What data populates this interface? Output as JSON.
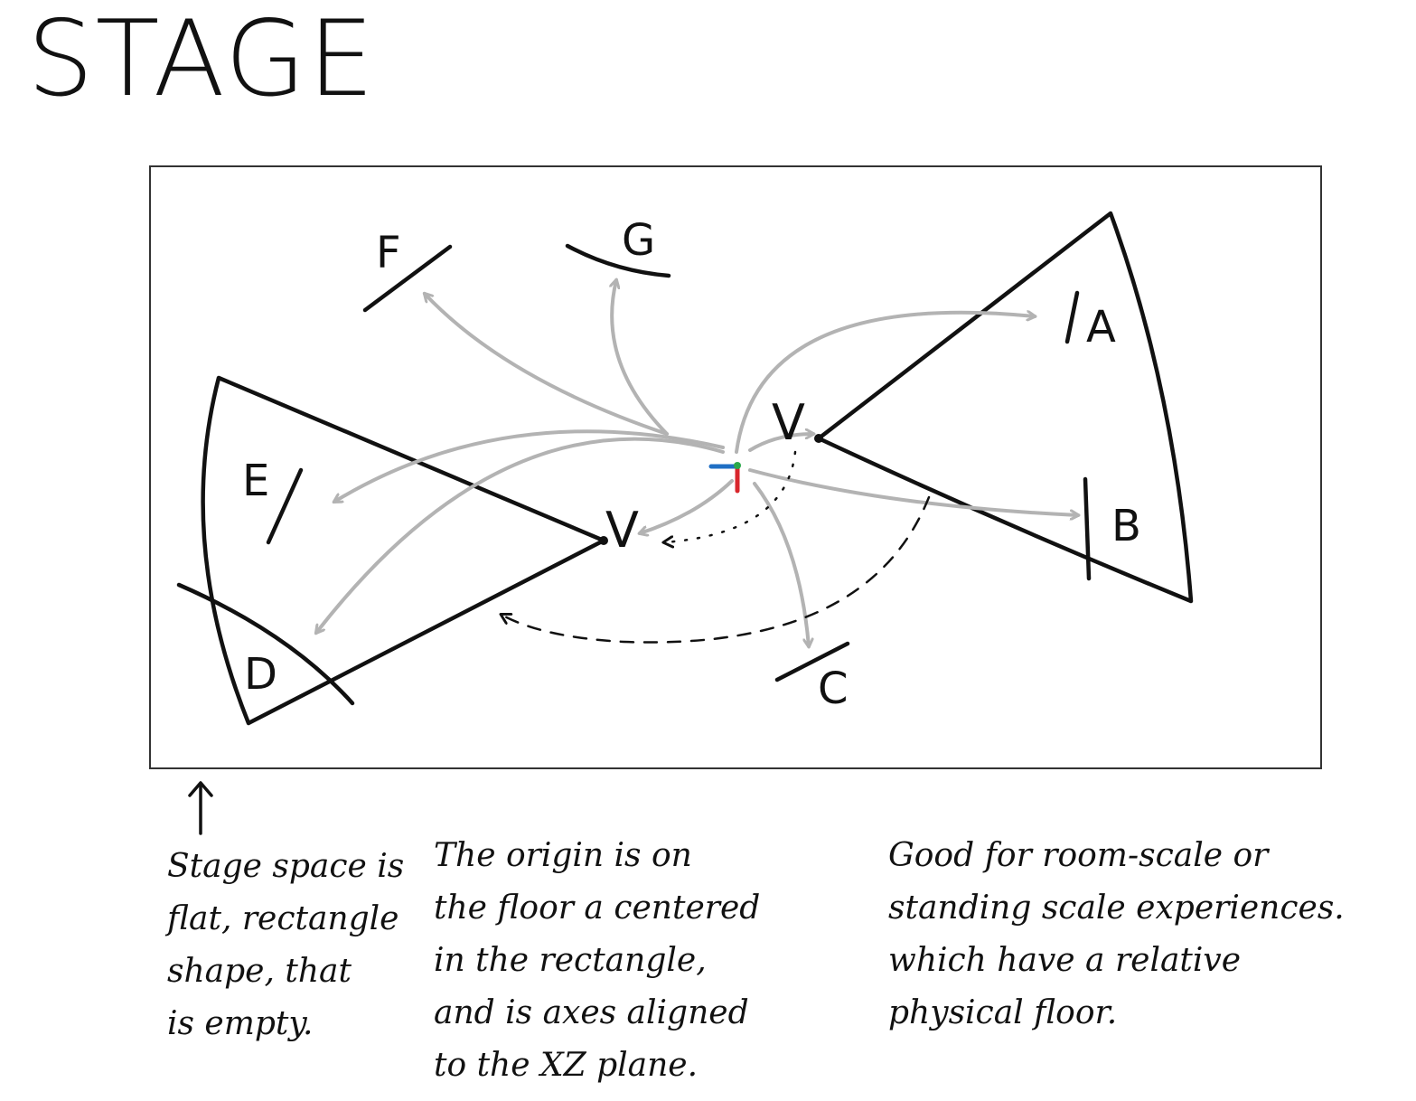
{
  "title": "STAGE",
  "labels": {
    "a": "A",
    "b": "B",
    "c": "C",
    "d": "D",
    "e": "E",
    "f": "F",
    "g": "G",
    "viewer": "V"
  },
  "notes": {
    "left": "Stage space is\nflat, rectangle\nshape, that\nis empty.",
    "middle": "The origin is on\nthe floor a centered\nin the rectangle,\nand is axes aligned\nto the XZ plane.",
    "right": "Good for room-scale or\nstanding scale experiences.\nwhich have a relative\nphysical floor."
  },
  "colors": {
    "ink": "#111111",
    "arrow_gray": "#b3b3b3",
    "axis_x": "#1f6fc4",
    "axis_y": "#2aa84a",
    "axis_z": "#d8262c"
  }
}
